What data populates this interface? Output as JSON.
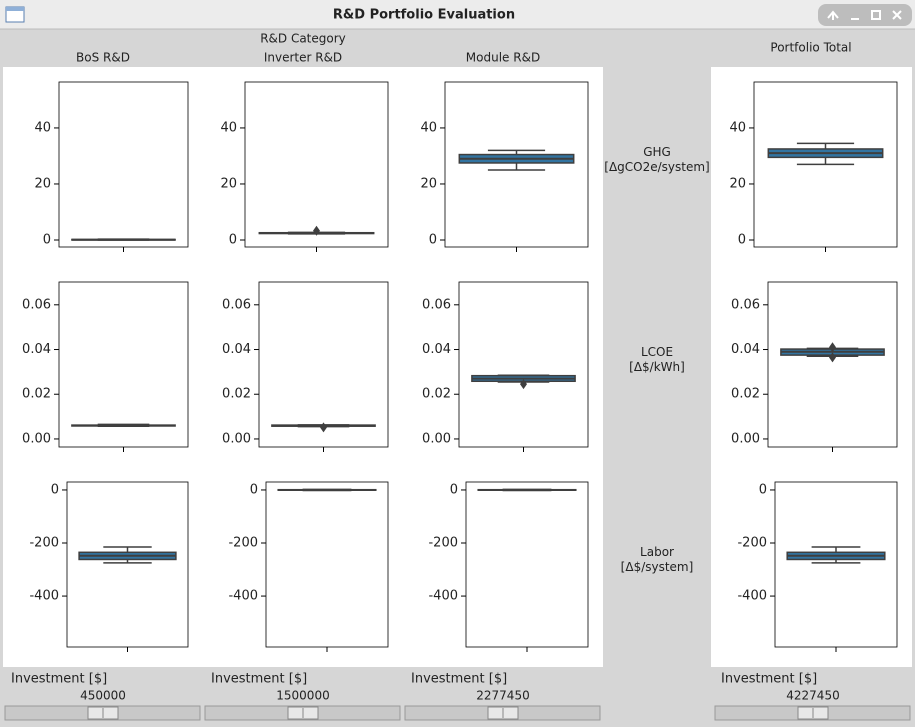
{
  "window": {
    "title": "R&D Portfolio Evaluation"
  },
  "header": {
    "group_label": "R&D Category",
    "columns": [
      "BoS R&D",
      "Inverter R&D",
      "Module R&D"
    ],
    "total": "Portfolio Total"
  },
  "metrics": [
    {
      "lines": [
        "GHG",
        "[ΔgCO2e/system]"
      ]
    },
    {
      "lines": [
        "LCOE",
        "[Δ$/kWh]"
      ]
    },
    {
      "lines": [
        "Labor",
        "[Δ$/system]"
      ]
    }
  ],
  "controls": [
    {
      "label": "Investment [$]",
      "value": 450000
    },
    {
      "label": "Investment [$]",
      "value": 1500000
    },
    {
      "label": "Investment [$]",
      "value": 2277450
    },
    {
      "label": "Investment [$]",
      "value": 4227450
    }
  ],
  "chart_data": [
    {
      "type": "box",
      "ylim": [
        -2.5,
        56.4
      ],
      "yticks": [
        0,
        20,
        40
      ],
      "color": "#3274a1",
      "edgecolor": "#3f3f3f",
      "box": {
        "whislo": 0,
        "q1": 0,
        "med": 0.1,
        "q3": 0.2,
        "whishi": 0.3
      }
    },
    {
      "type": "box",
      "ylim": [
        -2.5,
        56.4
      ],
      "yticks": [
        0,
        20,
        40
      ],
      "color": "#3274a1",
      "edgecolor": "#3f3f3f",
      "box": {
        "whislo": 2.2,
        "q1": 2.3,
        "med": 2.5,
        "q3": 2.6,
        "whishi": 2.7,
        "fliers": [
          3.3
        ]
      }
    },
    {
      "type": "box",
      "ylim": [
        -2.5,
        56.4
      ],
      "yticks": [
        0,
        20,
        40
      ],
      "color": "#3274a1",
      "edgecolor": "#3f3f3f",
      "box": {
        "whislo": 25,
        "q1": 27.5,
        "med": 29,
        "q3": 30.5,
        "whishi": 32
      }
    },
    {
      "type": "box",
      "ylim": [
        -2.5,
        56.4
      ],
      "yticks": [
        0,
        20,
        40
      ],
      "color": "#3274a1",
      "edgecolor": "#3f3f3f",
      "box": {
        "whislo": 27,
        "q1": 29.5,
        "med": 31,
        "q3": 32.5,
        "whishi": 34.5
      }
    },
    {
      "type": "box",
      "ylim": [
        -0.0036,
        0.0702
      ],
      "yticks": [
        {
          "value": 0,
          "label": "0.00"
        },
        {
          "value": 0.02,
          "label": "0.02"
        },
        {
          "value": 0.04,
          "label": "0.04"
        },
        {
          "value": 0.06,
          "label": "0.06"
        }
      ],
      "color": "#3274a1",
      "edgecolor": "#3f3f3f",
      "box": {
        "whislo": 0.0057,
        "q1": 0.0058,
        "med": 0.006,
        "q3": 0.0062,
        "whishi": 0.0065
      }
    },
    {
      "type": "box",
      "ylim": [
        -0.0036,
        0.0702
      ],
      "yticks": [
        {
          "value": 0,
          "label": "0.00"
        },
        {
          "value": 0.02,
          "label": "0.02"
        },
        {
          "value": 0.04,
          "label": "0.04"
        },
        {
          "value": 0.06,
          "label": "0.06"
        }
      ],
      "color": "#3274a1",
      "edgecolor": "#3f3f3f",
      "box": {
        "whislo": 0.0055,
        "q1": 0.0057,
        "med": 0.006,
        "q3": 0.0062,
        "whishi": 0.0063,
        "fliers": [
          0.0052
        ]
      }
    },
    {
      "type": "box",
      "ylim": [
        -0.0036,
        0.0702
      ],
      "yticks": [
        {
          "value": 0,
          "label": "0.00"
        },
        {
          "value": 0.02,
          "label": "0.02"
        },
        {
          "value": 0.04,
          "label": "0.04"
        },
        {
          "value": 0.06,
          "label": "0.06"
        }
      ],
      "color": "#3274a1",
      "edgecolor": "#3f3f3f",
      "box": {
        "whislo": 0.0255,
        "q1": 0.0258,
        "med": 0.027,
        "q3": 0.0283,
        "whishi": 0.0285,
        "fliers": [
          0.0245
        ]
      }
    },
    {
      "type": "box",
      "ylim": [
        -0.0036,
        0.0702
      ],
      "yticks": [
        {
          "value": 0,
          "label": "0.00"
        },
        {
          "value": 0.02,
          "label": "0.02"
        },
        {
          "value": 0.04,
          "label": "0.04"
        },
        {
          "value": 0.06,
          "label": "0.06"
        }
      ],
      "color": "#3274a1",
      "edgecolor": "#3f3f3f",
      "box": {
        "whislo": 0.037,
        "q1": 0.0375,
        "med": 0.039,
        "q3": 0.0402,
        "whishi": 0.0405,
        "fliers": [
          0.0365,
          0.041
        ]
      }
    },
    {
      "type": "box",
      "ylim": [
        -592,
        30
      ],
      "yticks": [
        0,
        -200,
        -400
      ],
      "color": "#3274a1",
      "edgecolor": "#3f3f3f",
      "box": {
        "whislo": -275,
        "q1": -262,
        "med": -248,
        "q3": -235,
        "whishi": -215
      }
    },
    {
      "type": "box",
      "ylim": [
        -592,
        30
      ],
      "yticks": [
        0,
        -200,
        -400
      ],
      "color": "#3274a1",
      "edgecolor": "#3f3f3f",
      "box": {
        "whislo": -2,
        "q1": -1,
        "med": 0,
        "q3": 1,
        "whishi": 2
      }
    },
    {
      "type": "box",
      "ylim": [
        -592,
        30
      ],
      "yticks": [
        0,
        -200,
        -400
      ],
      "color": "#3274a1",
      "edgecolor": "#3f3f3f",
      "box": {
        "whislo": -2,
        "q1": -1,
        "med": 0,
        "q3": 1,
        "whishi": 2
      }
    },
    {
      "type": "box",
      "ylim": [
        -592,
        30
      ],
      "yticks": [
        0,
        -200,
        -400
      ],
      "color": "#3274a1",
      "edgecolor": "#3f3f3f",
      "box": {
        "whislo": -275,
        "q1": -262,
        "med": -248,
        "q3": -235,
        "whishi": -215
      }
    }
  ]
}
